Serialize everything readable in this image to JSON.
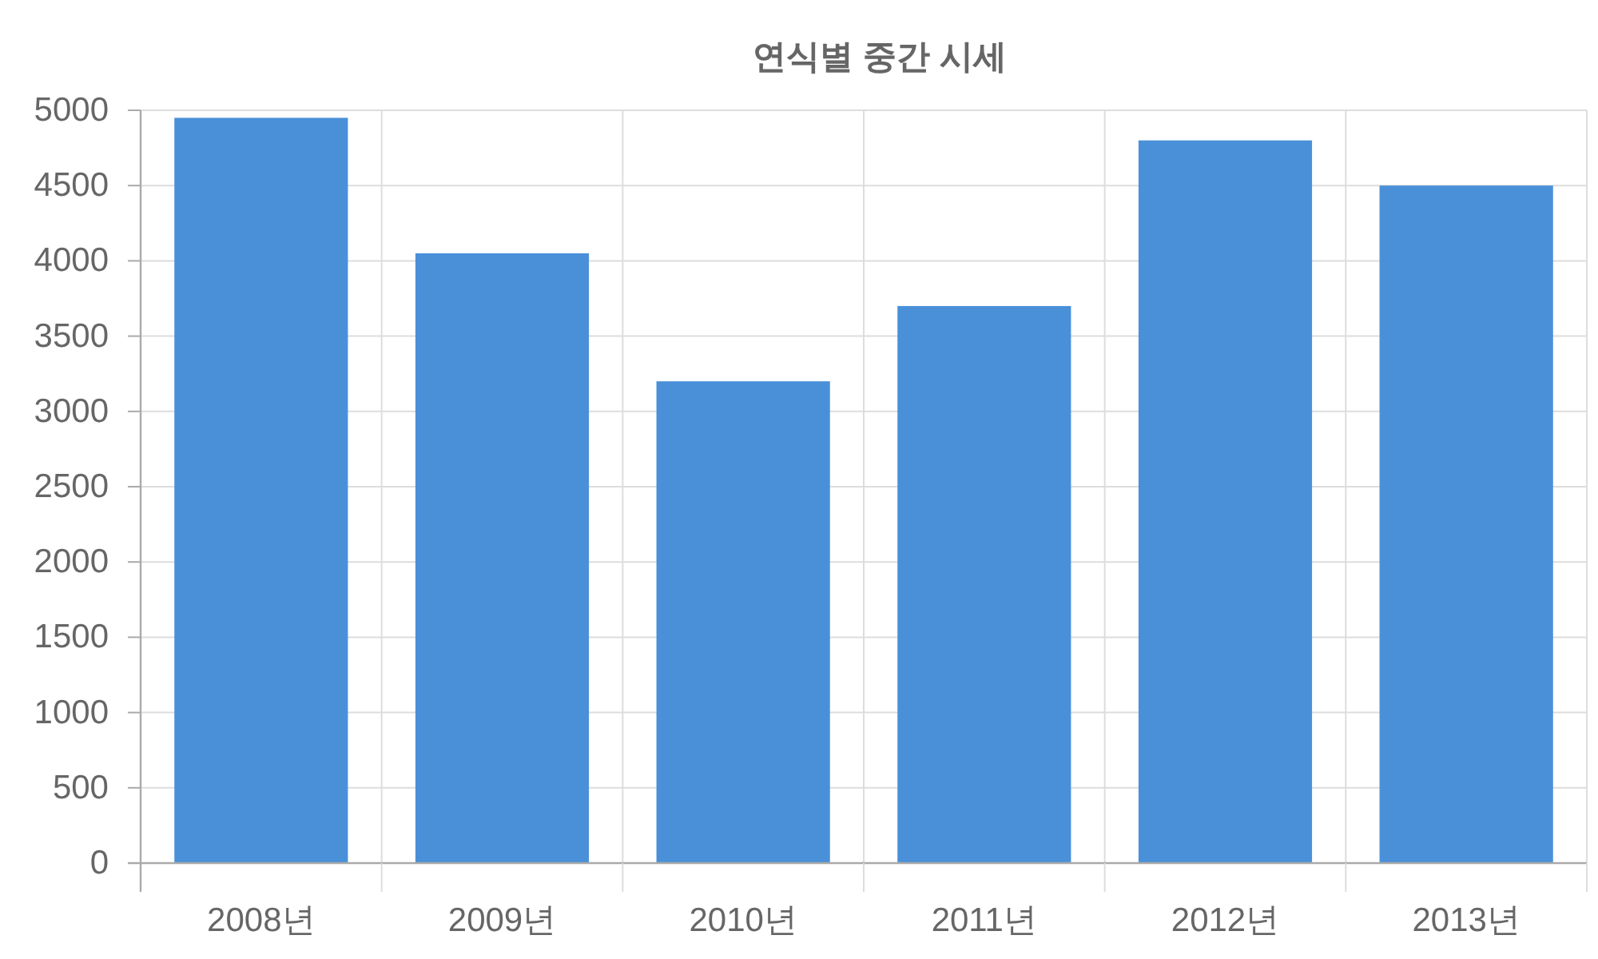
{
  "chart_data": {
    "type": "bar",
    "title": "연식별 중간 시세",
    "categories": [
      "2008년",
      "2009년",
      "2010년",
      "2011년",
      "2012년",
      "2013년"
    ],
    "values": [
      4950,
      4050,
      3200,
      3700,
      4800,
      4500
    ],
    "color": "#4a90d9",
    "ylim": [
      0,
      5000
    ],
    "yticks": [
      0,
      500,
      1000,
      1500,
      2000,
      2500,
      3000,
      3500,
      4000,
      4500,
      5000
    ],
    "grid": true
  }
}
